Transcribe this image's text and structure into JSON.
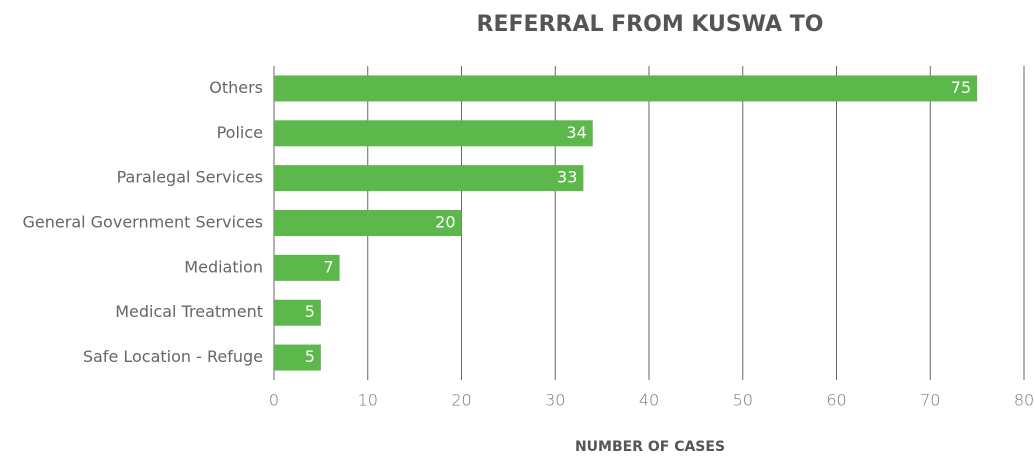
{
  "chart_data": {
    "type": "bar",
    "orientation": "horizontal",
    "title": "REFERRAL FROM KUSWA TO",
    "x_label": "NUMBER OF CASES",
    "categories": [
      "Others",
      "Police",
      "Paralegal Services",
      "General Government Services",
      "Mediation",
      "Medical Treatment",
      "Safe Location - Refuge"
    ],
    "values": [
      75,
      34,
      33,
      20,
      7,
      5,
      5
    ],
    "color": "#5cb84a",
    "xlim": [
      0,
      80
    ],
    "xticks": [
      0,
      10,
      20,
      30,
      40,
      50,
      60,
      70,
      80
    ],
    "grid": true,
    "data_labels": true
  }
}
